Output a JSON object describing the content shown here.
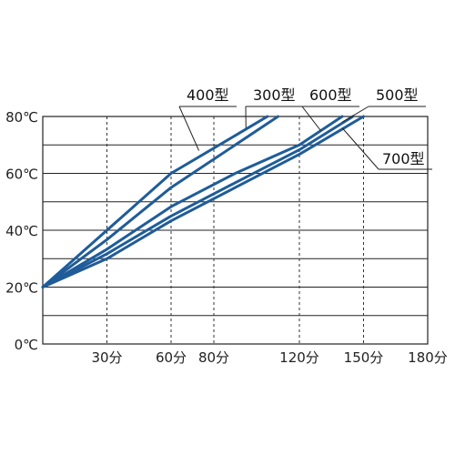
{
  "chart_data": {
    "type": "line",
    "title": "",
    "xlabel": "",
    "ylabel": "",
    "xlim": [
      0,
      180
    ],
    "ylim": [
      0,
      80
    ],
    "x_ticks": [
      30,
      60,
      80,
      120,
      150,
      180
    ],
    "x_tick_labels": [
      "30分",
      "60分",
      "80分",
      "120分",
      "150分",
      "180分"
    ],
    "y_ticks": [
      0,
      20,
      40,
      60,
      80
    ],
    "y_tick_labels": [
      "0℃",
      "20℃",
      "40℃",
      "60℃",
      "80℃"
    ],
    "grid": true,
    "series_color": "#1f5c99",
    "series": [
      {
        "name": "400型",
        "x": [
          0,
          30,
          60,
          90,
          105
        ],
        "y": [
          20,
          40,
          60,
          73.3,
          80
        ]
      },
      {
        "name": "300型",
        "x": [
          0,
          30,
          60,
          90,
          110
        ],
        "y": [
          20,
          36.7,
          55,
          70,
          80
        ]
      },
      {
        "name": "600型",
        "x": [
          0,
          30,
          60,
          90,
          120,
          140
        ],
        "y": [
          20,
          33.3,
          48.3,
          60,
          70,
          80
        ]
      },
      {
        "name": "500型",
        "x": [
          0,
          30,
          60,
          90,
          120,
          145
        ],
        "y": [
          20,
          31.7,
          45,
          56.7,
          68.3,
          80
        ]
      },
      {
        "name": "700型",
        "x": [
          0,
          30,
          60,
          90,
          120,
          150
        ],
        "y": [
          20,
          30,
          43.3,
          55,
          66.7,
          80
        ]
      }
    ]
  }
}
